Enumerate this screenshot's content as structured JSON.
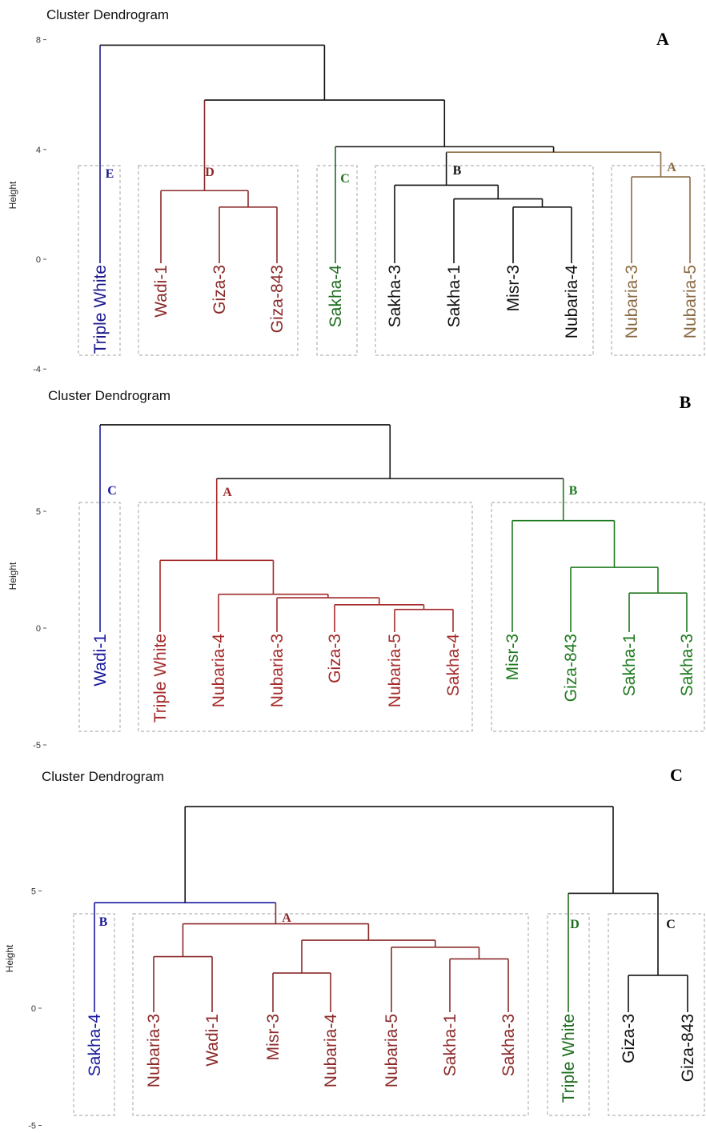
{
  "chart_data": [
    {
      "type": "dendrogram",
      "panel_label": "A",
      "title": "Cluster Dendrogram",
      "ylabel": "Height",
      "yticks": [
        8,
        4,
        0,
        -4
      ],
      "ylim": [
        -4,
        8
      ],
      "leaves": [
        "Triple White",
        "Wadi-1",
        "Giza-3",
        "Giza-843",
        "Sakha-4",
        "Sakha-3",
        "Sakha-1",
        "Misr-3",
        "Nubaria-4",
        "Nubaria-3",
        "Nubaria-5"
      ],
      "clusters": [
        {
          "label": "E",
          "leaves": [
            "Triple White"
          ],
          "color": "#1a1a8c"
        },
        {
          "label": "D",
          "leaves": [
            "Wadi-1",
            "Giza-3",
            "Giza-843"
          ],
          "color": "#8b2a2a"
        },
        {
          "label": "C",
          "leaves": [
            "Sakha-4"
          ],
          "color": "#1f6e1f"
        },
        {
          "label": "B",
          "leaves": [
            "Sakha-3",
            "Sakha-1",
            "Misr-3",
            "Nubaria-4"
          ],
          "color": "#111111"
        },
        {
          "label": "A",
          "leaves": [
            "Nubaria-3",
            "Nubaria-5"
          ],
          "color": "#8b6a43"
        }
      ],
      "merges": [
        {
          "left": "Giza-3",
          "right": "Giza-843",
          "height": 1.9,
          "color": "#8b2a2a"
        },
        {
          "left": "Wadi-1",
          "right": "Giza-3|Giza-843",
          "height": 2.5,
          "color": "#8b2a2a"
        },
        {
          "left": "Misr-3",
          "right": "Nubaria-4",
          "height": 1.9,
          "color": "#111111"
        },
        {
          "left": "Sakha-1",
          "right": "Misr-3|Nubaria-4",
          "height": 2.2,
          "color": "#111111"
        },
        {
          "left": "Sakha-3",
          "right": "Sakha-1|Misr-3|Nubaria-4",
          "height": 2.7,
          "color": "#111111"
        },
        {
          "left": "Nubaria-3",
          "right": "Nubaria-5",
          "height": 3.0,
          "color": "#8b6a43"
        },
        {
          "left": "B",
          "right": "A",
          "height": 3.9,
          "color": "#8b6a43"
        },
        {
          "left": "Sakha-4",
          "right": "B+A",
          "height": 4.1,
          "color": "#111111"
        },
        {
          "left": "D",
          "right": "C+B+A",
          "height": 5.8,
          "color": "#111111"
        },
        {
          "left": "Triple White",
          "right": "rest",
          "height": 7.8,
          "color": "#111111"
        }
      ]
    },
    {
      "type": "dendrogram",
      "panel_label": "B",
      "title": "Cluster Dendrogram",
      "ylabel": "Height",
      "yticks": [
        5,
        0,
        -5
      ],
      "ylim": [
        -5,
        9
      ],
      "leaves": [
        "Wadi-1",
        "Triple White",
        "Nubaria-4",
        "Nubaria-3",
        "Giza-3",
        "Nubaria-5",
        "Sakha-4",
        "Misr-3",
        "Giza-843",
        "Sakha-1",
        "Sakha-3"
      ],
      "clusters": [
        {
          "label": "C",
          "leaves": [
            "Wadi-1"
          ],
          "color": "#1a1a9c"
        },
        {
          "label": "A",
          "leaves": [
            "Triple White",
            "Nubaria-4",
            "Nubaria-3",
            "Giza-3",
            "Nubaria-5",
            "Sakha-4"
          ],
          "color": "#a52a2a"
        },
        {
          "label": "B",
          "leaves": [
            "Misr-3",
            "Giza-843",
            "Sakha-1",
            "Sakha-3"
          ],
          "color": "#1f7a1f"
        }
      ],
      "merges": [
        {
          "left": "Nubaria-5",
          "right": "Sakha-4",
          "height": 0.8,
          "color": "#a52a2a"
        },
        {
          "left": "Giza-3",
          "right": "Nubaria-5|Sakha-4",
          "height": 1.0,
          "color": "#a52a2a"
        },
        {
          "left": "Nubaria-3",
          "right": "Giza-3|Nubaria-5|Sakha-4",
          "height": 1.3,
          "color": "#a52a2a"
        },
        {
          "left": "Nubaria-4",
          "right": "Nubaria-3|...",
          "height": 1.45,
          "color": "#a52a2a"
        },
        {
          "left": "Triple White",
          "right": "Nubaria-4|...",
          "height": 2.9,
          "color": "#a52a2a"
        },
        {
          "left": "Sakha-1",
          "right": "Sakha-3",
          "height": 1.5,
          "color": "#1f7a1f"
        },
        {
          "left": "Giza-843",
          "right": "Sakha-1|Sakha-3",
          "height": 2.6,
          "color": "#1f7a1f"
        },
        {
          "left": "Misr-3",
          "right": "Giza-843|Sakha-1|Sakha-3",
          "height": 4.6,
          "color": "#1f7a1f"
        },
        {
          "left": "A",
          "right": "B",
          "height": 6.4,
          "color": "#111111"
        },
        {
          "left": "Wadi-1",
          "right": "A+B",
          "height": 8.7,
          "color": "#111111"
        }
      ]
    },
    {
      "type": "dendrogram",
      "panel_label": "C",
      "title": "Cluster Dendrogram",
      "ylabel": "Height",
      "yticks": [
        5,
        0,
        -5
      ],
      "ylim": [
        -5,
        9
      ],
      "leaves": [
        "Sakha-4",
        "Nubaria-3",
        "Wadi-1",
        "Misr-3",
        "Nubaria-4",
        "Nubaria-5",
        "Sakha-1",
        "Sakha-3",
        "Triple White",
        "Giza-3",
        "Giza-843"
      ],
      "clusters": [
        {
          "label": "B",
          "leaves": [
            "Sakha-4"
          ],
          "color": "#1a1a9c"
        },
        {
          "label": "A",
          "leaves": [
            "Nubaria-3",
            "Wadi-1",
            "Misr-3",
            "Nubaria-4",
            "Nubaria-5",
            "Sakha-1",
            "Sakha-3"
          ],
          "color": "#8b2a2a"
        },
        {
          "label": "D",
          "leaves": [
            "Triple White"
          ],
          "color": "#1f6e1f"
        },
        {
          "label": "C",
          "leaves": [
            "Giza-3",
            "Giza-843"
          ],
          "color": "#111111"
        }
      ],
      "merges": [
        {
          "left": "Nubaria-3",
          "right": "Wadi-1",
          "height": 2.2,
          "color": "#8b2a2a"
        },
        {
          "left": "Misr-3",
          "right": "Nubaria-4",
          "height": 1.5,
          "color": "#8b2a2a"
        },
        {
          "left": "Sakha-1",
          "right": "Sakha-3",
          "height": 2.1,
          "color": "#8b2a2a"
        },
        {
          "left": "Nubaria-5",
          "right": "Sakha-1|Sakha-3",
          "height": 2.6,
          "color": "#8b2a2a"
        },
        {
          "left": "Misr-3|Nubaria-4",
          "right": "Nubaria-5|Sakha-1|Sakha-3",
          "height": 2.9,
          "color": "#8b2a2a"
        },
        {
          "left": "Nubaria-3|Wadi-1",
          "right": "Misr-3|...",
          "height": 3.6,
          "color": "#8b2a2a"
        },
        {
          "left": "Sakha-4",
          "right": "A",
          "height": 4.5,
          "color": "#1a1a9c"
        },
        {
          "left": "Giza-3",
          "right": "Giza-843",
          "height": 1.4,
          "color": "#111111"
        },
        {
          "left": "Triple White",
          "right": "C",
          "height": 4.9,
          "color": "#111111"
        },
        {
          "left": "B+A",
          "right": "D+C",
          "height": 8.6,
          "color": "#111111"
        }
      ]
    }
  ]
}
